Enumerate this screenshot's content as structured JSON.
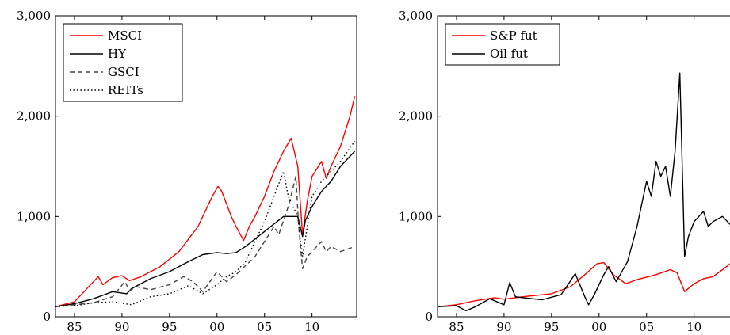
{
  "chart_data": [
    {
      "type": "line",
      "x_ticks": [
        85,
        90,
        95,
        0,
        5,
        10
      ],
      "x_tick_labels": [
        "85",
        "90",
        "95",
        "00",
        "05",
        "10"
      ],
      "y_ticks": [
        0,
        1000,
        2000,
        3000
      ],
      "y_tick_labels": [
        "0",
        "1,000",
        "2,000",
        "3,000"
      ],
      "xlim": [
        1983.0,
        2014.7
      ],
      "ylim": [
        0,
        3000
      ],
      "legend_position": "top-left",
      "series": [
        {
          "name": "MSCI",
          "color": "#ff0000",
          "dash": "solid",
          "x": [
            1983.0,
            1985,
            1986,
            1987.5,
            1988.0,
            1989,
            1990,
            1990.8,
            1992,
            1994,
            1996,
            1998,
            1999.5,
            2000.1,
            2000.5,
            2001.5,
            2002,
            2002.8,
            2003.4,
            2004,
            2005,
            2006,
            2007,
            2007.8,
            2008.5,
            2009.0,
            2009.5,
            2010,
            2011,
            2011.5,
            2012,
            2013,
            2014.0,
            2014.5
          ],
          "y": [
            100,
            150,
            250,
            400,
            320,
            390,
            410,
            360,
            400,
            500,
            650,
            900,
            1200,
            1300,
            1250,
            1000,
            900,
            760,
            900,
            1000,
            1200,
            1450,
            1650,
            1780,
            1500,
            820,
            1150,
            1400,
            1550,
            1380,
            1500,
            1700,
            2000,
            2200
          ]
        },
        {
          "name": "HY",
          "color": "#000000",
          "dash": "solid",
          "x": [
            1983.0,
            1985,
            1987,
            1989,
            1990.5,
            1991,
            1993,
            1995,
            1997,
            1998.5,
            2000,
            2001,
            2002,
            2003,
            2005,
            2007,
            2008.5,
            2009.0,
            2009.3,
            2010,
            2011,
            2012,
            2013,
            2014.5
          ],
          "y": [
            100,
            130,
            180,
            250,
            230,
            280,
            380,
            450,
            550,
            620,
            640,
            630,
            640,
            700,
            850,
            1000,
            1000,
            800,
            960,
            1100,
            1250,
            1350,
            1500,
            1650
          ]
        },
        {
          "name": "GSCI",
          "color": "#444444",
          "dash": "6 4",
          "x": [
            1983.0,
            1985,
            1987,
            1989,
            1990.3,
            1990.8,
            1991.5,
            1993,
            1995,
            1996.5,
            1997.5,
            1998.5,
            2000,
            2001,
            2002,
            2004,
            2005,
            2006,
            2006.5,
            2007.5,
            2008.3,
            2008.6,
            2009.0,
            2009.5,
            2010,
            2011,
            2011.5,
            2012,
            2013,
            2014.5
          ],
          "y": [
            100,
            120,
            140,
            200,
            350,
            260,
            300,
            270,
            320,
            400,
            350,
            250,
            450,
            350,
            420,
            600,
            750,
            900,
            820,
            1100,
            1400,
            900,
            480,
            600,
            650,
            750,
            650,
            700,
            650,
            700
          ]
        },
        {
          "name": "REITs",
          "color": "#000000",
          "dash": "1.5 3",
          "x": [
            1983.0,
            1985,
            1987,
            1989,
            1991,
            1993,
            1995,
            1997,
            1998.5,
            2000,
            2001,
            2002,
            2003,
            2004,
            2005,
            2006,
            2007,
            2007.5,
            2008.5,
            2009.0,
            2009.5,
            2010,
            2011,
            2012,
            2013,
            2014.5
          ],
          "y": [
            100,
            110,
            140,
            150,
            120,
            200,
            230,
            310,
            230,
            320,
            400,
            450,
            550,
            750,
            950,
            1200,
            1450,
            1200,
            1000,
            600,
            900,
            1200,
            1350,
            1450,
            1550,
            1750
          ]
        }
      ]
    },
    {
      "type": "line",
      "x_ticks": [
        85,
        90,
        95,
        0,
        5,
        10
      ],
      "x_tick_labels": [
        "85",
        "90",
        "95",
        "00",
        "05",
        "10"
      ],
      "y_ticks": [
        0,
        1000,
        2000,
        3000
      ],
      "y_tick_labels": [
        "0",
        "1,000",
        "2,000",
        "3,000"
      ],
      "xlim": [
        1983.0,
        2014.7
      ],
      "ylim": [
        0,
        3000
      ],
      "legend_position": "top-left",
      "series": [
        {
          "name": "S&P fut",
          "color": "#ff0000",
          "dash": "solid",
          "x": [
            1983.0,
            1985,
            1987,
            1989,
            1990,
            1992,
            1995,
            1997,
            1998.5,
            1999.8,
            2000.5,
            2001.5,
            2002.8,
            2004,
            2006,
            2007.5,
            2008.2,
            2009.0,
            2010,
            2011,
            2012,
            2013,
            2014.5
          ],
          "y": [
            100,
            120,
            160,
            190,
            175,
            200,
            230,
            300,
            420,
            530,
            540,
            420,
            330,
            370,
            420,
            470,
            440,
            250,
            330,
            380,
            400,
            470,
            580
          ]
        },
        {
          "name": "Oil fut",
          "color": "#000000",
          "dash": "solid",
          "x": [
            1983.0,
            1985,
            1986,
            1987,
            1988.5,
            1990.0,
            1990.6,
            1991.2,
            1992,
            1994,
            1996,
            1996.8,
            1997.5,
            1998.5,
            1998.9,
            1999.5,
            2000.5,
            2001,
            2001.8,
            2003,
            2004,
            2005.0,
            2005.5,
            2006,
            2006.5,
            2007,
            2007.5,
            2008.0,
            2008.5,
            2009.0,
            2009.4,
            2010,
            2011,
            2011.5,
            2012,
            2013,
            2014.0,
            2014.5
          ],
          "y": [
            100,
            110,
            60,
            100,
            180,
            120,
            340,
            200,
            190,
            170,
            220,
            330,
            430,
            200,
            120,
            220,
            420,
            500,
            350,
            550,
            900,
            1350,
            1200,
            1550,
            1400,
            1500,
            1200,
            1650,
            2430,
            600,
            800,
            950,
            1050,
            900,
            950,
            1000,
            900,
            1100
          ]
        }
      ]
    }
  ]
}
